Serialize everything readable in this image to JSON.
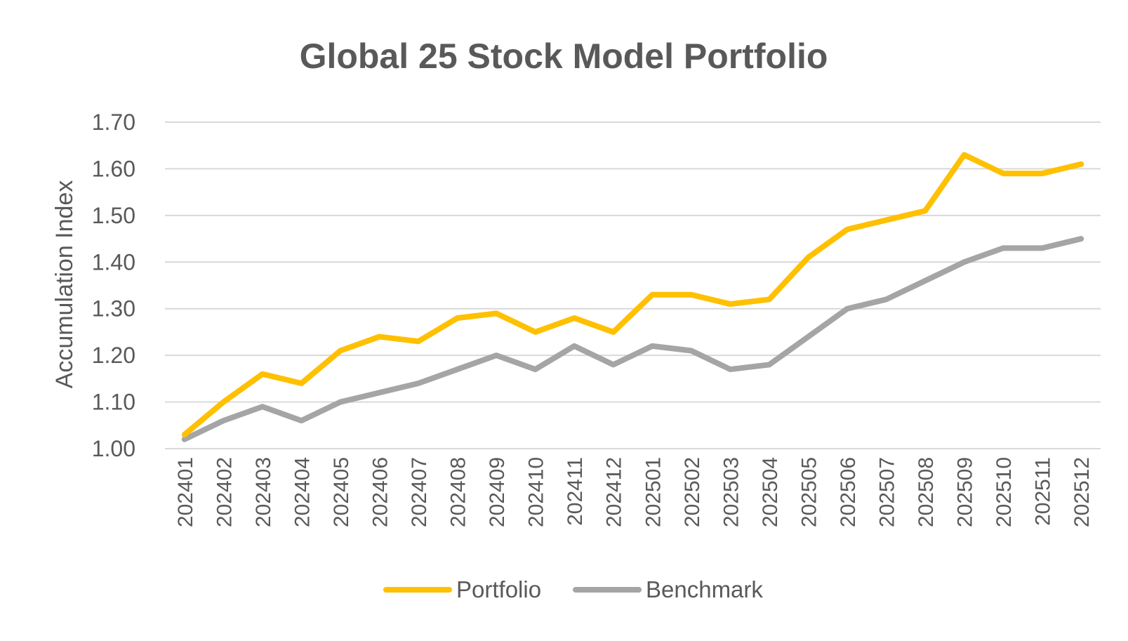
{
  "chart_data": {
    "type": "line",
    "title": "Global 25 Stock Model Portfolio",
    "xlabel": "",
    "ylabel": "Accumulation Index",
    "ylim": [
      1.0,
      1.7
    ],
    "y_ticks": [
      "1.00",
      "1.10",
      "1.20",
      "1.30",
      "1.40",
      "1.50",
      "1.60",
      "1.70"
    ],
    "grid": true,
    "legend_position": "bottom",
    "categories": [
      "202401",
      "202402",
      "202403",
      "202404",
      "202405",
      "202406",
      "202407",
      "202408",
      "202409",
      "202410",
      "202411",
      "202412",
      "202501",
      "202502",
      "202503",
      "202504",
      "202505",
      "202506",
      "202507",
      "202508",
      "202509",
      "202510",
      "202511",
      "202512"
    ],
    "series": [
      {
        "name": "Portfolio",
        "color": "#FFC000",
        "values": [
          1.03,
          1.1,
          1.16,
          1.14,
          1.21,
          1.24,
          1.23,
          1.28,
          1.29,
          1.25,
          1.28,
          1.25,
          1.33,
          1.33,
          1.31,
          1.32,
          1.41,
          1.47,
          1.49,
          1.51,
          1.63,
          1.59,
          1.59,
          1.61
        ]
      },
      {
        "name": "Benchmark",
        "color": "#A5A5A5",
        "values": [
          1.02,
          1.06,
          1.09,
          1.06,
          1.1,
          1.12,
          1.14,
          1.17,
          1.2,
          1.17,
          1.22,
          1.18,
          1.22,
          1.21,
          1.17,
          1.18,
          1.24,
          1.3,
          1.32,
          1.36,
          1.4,
          1.43,
          1.43,
          1.45
        ]
      }
    ]
  }
}
